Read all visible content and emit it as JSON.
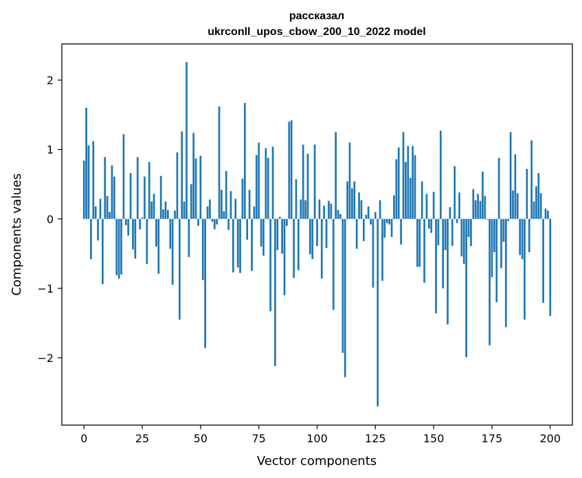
{
  "chart_data": {
    "type": "bar",
    "title_lines": [
      "рассказал",
      "ukrconll_upos_cbow_200_10_2022 model"
    ],
    "xlabel": "Vector components",
    "ylabel": "Components values",
    "xlim": [
      -9.5,
      209.5
    ],
    "ylim": [
      -2.97,
      2.52
    ],
    "xticks": [
      0,
      25,
      50,
      75,
      100,
      125,
      150,
      175,
      200
    ],
    "yticks": [
      -2,
      -1,
      0,
      1,
      2
    ],
    "ytick_labels": [
      "−2",
      "−1",
      "0",
      "1",
      "2"
    ],
    "bar_color": "#1f77b4",
    "grid": false,
    "values": [
      0.84,
      1.6,
      1.06,
      -0.58,
      1.12,
      0.18,
      -0.31,
      0.29,
      -0.94,
      0.89,
      0.33,
      0.1,
      0.77,
      0.61,
      -0.81,
      -0.86,
      -0.8,
      1.22,
      -0.09,
      -0.24,
      0.66,
      -0.44,
      -0.57,
      0.89,
      -0.15,
      0.02,
      0.61,
      -0.65,
      0.82,
      0.25,
      0.36,
      -0.4,
      -0.79,
      0.62,
      0.14,
      0.25,
      0.13,
      -0.43,
      -0.95,
      0.12,
      0.96,
      -1.45,
      1.26,
      0.25,
      2.26,
      -0.55,
      0.5,
      1.24,
      0.87,
      -0.1,
      0.91,
      -0.88,
      -1.86,
      0.18,
      0.28,
      -0.04,
      -0.15,
      -0.08,
      1.62,
      0.42,
      0.11,
      0.69,
      -0.16,
      0.4,
      -0.77,
      0.29,
      -0.7,
      -0.78,
      0.58,
      1.67,
      -0.3,
      0.42,
      -0.75,
      0.18,
      0.92,
      1.1,
      -0.4,
      -0.53,
      1.02,
      0.88,
      -1.33,
      1.04,
      -2.12,
      -0.45,
      0.03,
      -0.5,
      -1.1,
      -0.1,
      1.4,
      1.42,
      -0.85,
      0.57,
      -0.74,
      0.28,
      1.07,
      0.27,
      0.94,
      -0.51,
      -0.58,
      1.07,
      -0.39,
      0.28,
      -0.86,
      0.19,
      -0.42,
      0.26,
      0.22,
      -1.31,
      1.25,
      0.13,
      0.07,
      -1.93,
      -2.28,
      0.54,
      1.1,
      0.44,
      0.54,
      -0.43,
      0.38,
      0.27,
      -0.32,
      0.06,
      0.18,
      -0.08,
      -0.99,
      0.1,
      -2.7,
      0.27,
      -0.89,
      -0.27,
      -0.06,
      -0.08,
      -0.26,
      0.34,
      0.86,
      1.03,
      -0.37,
      1.25,
      0.82,
      1.05,
      0.59,
      1.05,
      0.92,
      -0.69,
      -0.69,
      0.54,
      -0.92,
      0.36,
      -0.14,
      -0.2,
      0.39,
      -1.36,
      -0.38,
      1.27,
      -1.0,
      -0.45,
      -1.52,
      0.17,
      -0.39,
      0.76,
      -0.06,
      0.38,
      -0.54,
      -0.65,
      -1.99,
      -0.26,
      -0.39,
      0.43,
      0.27,
      0.36,
      0.26,
      0.68,
      0.33,
      -0.01,
      -1.82,
      -0.84,
      -0.48,
      -1.2,
      0.88,
      -0.71,
      -0.33,
      -1.56,
      -0.03,
      1.25,
      0.41,
      0.93,
      0.37,
      -0.52,
      -0.58,
      -1.45,
      0.72,
      -0.48,
      1.13,
      0.25,
      0.47,
      0.66,
      0.37,
      -1.21,
      0.15,
      0.12,
      -1.4
    ]
  }
}
